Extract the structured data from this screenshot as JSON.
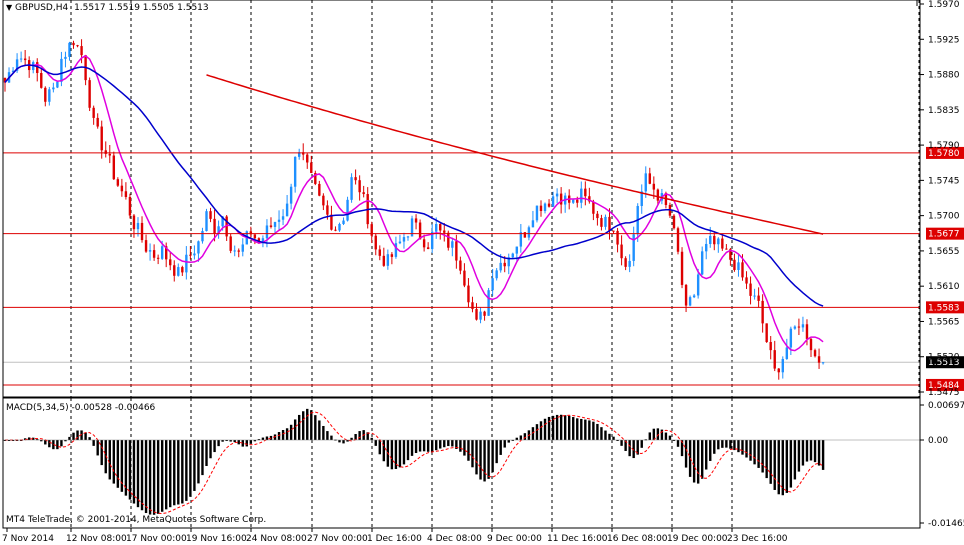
{
  "header": {
    "symbol": "GBPUSD,H4",
    "ohlc": "1.5517 1.5519 1.5505 1.5513"
  },
  "indicator": {
    "label": "MACD(5,34,5) -0.00528 -0.00466"
  },
  "copyright": "MT4 TeleTrade, © 2001-2014, MetaQuotes Software Corp.",
  "colors": {
    "bull": "#1e90ff",
    "bear": "#dd0000",
    "ma_slow": "#dd0000",
    "ma_mid": "#0000cc",
    "ma_fast": "#e000e0",
    "level": "#dd0000",
    "grid": "#000000",
    "macd_bar": "#000000",
    "macd_signal": "#ff0000",
    "current": "#c0c0c0"
  },
  "chart_data": [
    {
      "type": "candlestick",
      "title": "GBPUSD,H4",
      "ylim": [
        1.5475,
        1.597
      ],
      "price_ticks": [
        "1.5970",
        "1.5925",
        "1.5880",
        "1.5835",
        "1.5790",
        "1.5745",
        "1.5700",
        "1.5655",
        "1.5610",
        "1.5565",
        "1.5520",
        "1.5475"
      ],
      "time_labels": [
        "7 Nov 2014",
        "12 Nov 08:00",
        "17 Nov 00:00",
        "19 Nov 16:00",
        "24 Nov 08:00",
        "27 Nov 00:00",
        "1 Dec 16:00",
        "4 Dec 08:00",
        "9 Dec 00:00",
        "11 Dec 16:00",
        "16 Dec 08:00",
        "19 Dec 00:00",
        "23 Dec 16:00"
      ],
      "levels": [
        {
          "value": 1.578,
          "label": "1.5780"
        },
        {
          "value": 1.5677,
          "label": "1.5677"
        },
        {
          "value": 1.5583,
          "label": "1.5583"
        },
        {
          "value": 1.5484,
          "label": "1.5484"
        }
      ],
      "current_price": {
        "value": 1.5513,
        "label": "1.5513"
      },
      "anchors": [
        [
          0,
          1.587
        ],
        [
          3,
          1.5905
        ],
        [
          6,
          1.5895
        ],
        [
          8,
          1.588
        ],
        [
          10,
          1.585
        ],
        [
          12,
          1.586
        ],
        [
          14,
          1.59
        ],
        [
          17,
          1.5925
        ],
        [
          19,
          1.5905
        ],
        [
          20,
          1.588
        ],
        [
          22,
          1.5815
        ],
        [
          25,
          1.578
        ],
        [
          28,
          1.574
        ],
        [
          30,
          1.572
        ],
        [
          32,
          1.569
        ],
        [
          35,
          1.566
        ],
        [
          37,
          1.565
        ],
        [
          39,
          1.5655
        ],
        [
          41,
          1.564
        ],
        [
          43,
          1.5625
        ],
        [
          46,
          1.565
        ],
        [
          48,
          1.5665
        ],
        [
          50,
          1.57
        ],
        [
          52,
          1.5685
        ],
        [
          54,
          1.57
        ],
        [
          56,
          1.5665
        ],
        [
          58,
          1.565
        ],
        [
          61,
          1.568
        ],
        [
          63,
          1.5665
        ],
        [
          65,
          1.568
        ],
        [
          68,
          1.57
        ],
        [
          70,
          1.571
        ],
        [
          72,
          1.578
        ],
        [
          74,
          1.577
        ],
        [
          76,
          1.5745
        ],
        [
          78,
          1.572
        ],
        [
          80,
          1.57
        ],
        [
          82,
          1.5685
        ],
        [
          84,
          1.57
        ],
        [
          86,
          1.5745
        ],
        [
          88,
          1.5735
        ],
        [
          90,
          1.57
        ],
        [
          92,
          1.5655
        ],
        [
          95,
          1.564
        ],
        [
          98,
          1.5665
        ],
        [
          101,
          1.569
        ],
        [
          103,
          1.5675
        ],
        [
          105,
          1.5665
        ],
        [
          107,
          1.5685
        ],
        [
          109,
          1.567
        ],
        [
          111,
          1.566
        ],
        [
          113,
          1.564
        ],
        [
          115,
          1.56
        ],
        [
          117,
          1.556
        ],
        [
          119,
          1.558
        ],
        [
          121,
          1.563
        ],
        [
          123,
          1.564
        ],
        [
          125,
          1.565
        ],
        [
          127,
          1.5665
        ],
        [
          129,
          1.568
        ],
        [
          131,
          1.5705
        ],
        [
          133,
          1.5715
        ],
        [
          135,
          1.572
        ],
        [
          137,
          1.573
        ],
        [
          139,
          1.572
        ],
        [
          141,
          1.5715
        ],
        [
          143,
          1.5725
        ],
        [
          145,
          1.5715
        ],
        [
          147,
          1.57
        ],
        [
          149,
          1.569
        ],
        [
          151,
          1.569
        ],
        [
          153,
          1.565
        ],
        [
          155,
          1.564
        ],
        [
          157,
          1.5715
        ],
        [
          159,
          1.5745
        ],
        [
          161,
          1.5735
        ],
        [
          163,
          1.572
        ],
        [
          165,
          1.57
        ],
        [
          167,
          1.565
        ],
        [
          169,
          1.5575
        ],
        [
          171,
          1.56
        ],
        [
          173,
          1.565
        ],
        [
          175,
          1.5665
        ],
        [
          177,
          1.566
        ],
        [
          179,
          1.565
        ],
        [
          181,
          1.564
        ],
        [
          183,
          1.562
        ],
        [
          185,
          1.56
        ],
        [
          187,
          1.5585
        ],
        [
          189,
          1.554
        ],
        [
          191,
          1.55
        ],
        [
          193,
          1.552
        ],
        [
          195,
          1.5545
        ],
        [
          197,
          1.5565
        ],
        [
          199,
          1.555
        ],
        [
          201,
          1.552
        ],
        [
          203,
          1.5513
        ]
      ],
      "candle_count": 204,
      "moving_averages": [
        {
          "color": "#e000e0",
          "period": 8
        },
        {
          "color": "#0000cc",
          "period": 34
        },
        {
          "color": "#dd0000",
          "period": 200
        }
      ]
    },
    {
      "type": "histogram",
      "title": "MACD(5,34,5)",
      "ylim": [
        -0.01465,
        0.00697
      ],
      "ticks": [
        "0.00697",
        "0.00",
        "-0.01465"
      ],
      "current": {
        "macd": -0.00528,
        "signal": -0.00466
      }
    }
  ]
}
